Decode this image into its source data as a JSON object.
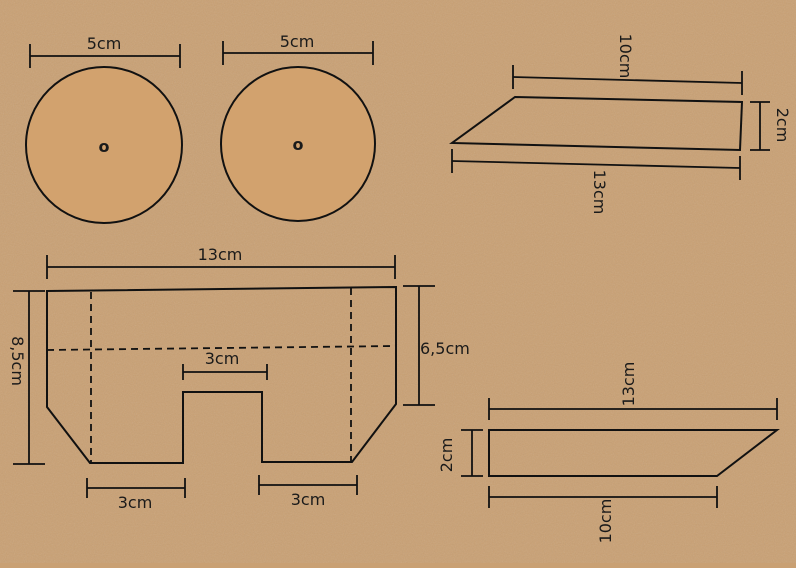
{
  "colors": {
    "background": "#c9a073",
    "disc_fill": "#d2a26e",
    "line": "#111111"
  },
  "wheels": [
    {
      "diameter_label": "5cm",
      "center_mark": "o"
    },
    {
      "diameter_label": "5cm",
      "center_mark": "o"
    }
  ],
  "top_right_part": {
    "top_label": "10cm",
    "side_label": "2cm",
    "bottom_label": "13cm"
  },
  "body_part": {
    "width_label": "13cm",
    "height_label": "8,5cm",
    "inner_height_label": "6,5cm",
    "cutout_label": "3cm",
    "left_leg_label": "3cm",
    "right_leg_label": "3cm"
  },
  "bottom_right_part": {
    "top_label": "13cm",
    "side_label": "2cm",
    "bottom_label": "10cm"
  }
}
